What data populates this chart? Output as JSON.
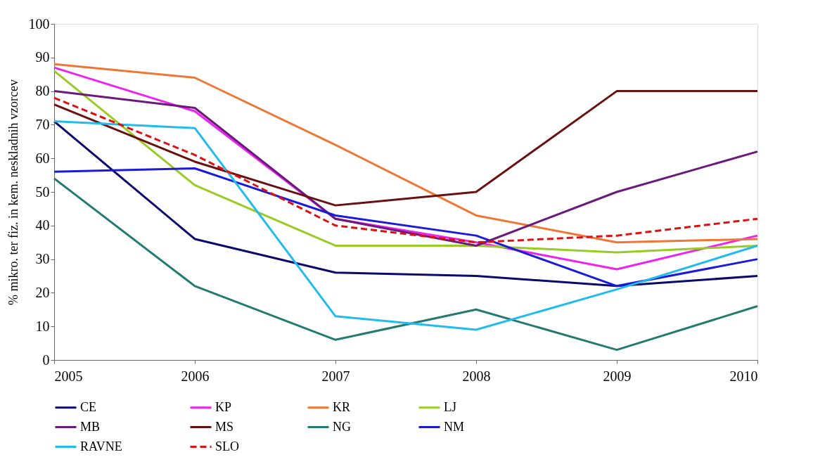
{
  "chart_data": {
    "type": "line",
    "ylabel": "% mikro. ter fiz. in kem. neskladnih vzorcev",
    "x": [
      2005,
      2006,
      2007,
      2008,
      2009,
      2010
    ],
    "xlim": [
      2005,
      2010
    ],
    "xticks": [
      2005,
      2006,
      2007,
      2008,
      2009,
      2010
    ],
    "ylim": [
      0,
      100
    ],
    "yticks": [
      0,
      10,
      20,
      30,
      40,
      50,
      60,
      70,
      80,
      90,
      100
    ],
    "grid": false,
    "legend": "bottom",
    "marker": "none",
    "series": [
      {
        "name": "CE",
        "color": "#0a0a6e",
        "values": [
          71,
          36,
          26,
          25,
          22,
          25
        ],
        "line_style": "solid"
      },
      {
        "name": "KP",
        "color": "#ee22ee",
        "values": [
          87,
          74,
          42,
          35,
          27,
          37
        ],
        "line_style": "solid"
      },
      {
        "name": "KR",
        "color": "#ee7733",
        "values": [
          88,
          84,
          64,
          43,
          35,
          36
        ],
        "line_style": "solid"
      },
      {
        "name": "LJ",
        "color": "#99cc22",
        "values": [
          86,
          52,
          34,
          34,
          32,
          34
        ],
        "line_style": "solid"
      },
      {
        "name": "MB",
        "color": "#6a1a7a",
        "values": [
          80,
          75,
          42,
          34,
          50,
          62
        ],
        "line_style": "solid"
      },
      {
        "name": "MS",
        "color": "#6a1010",
        "values": [
          76,
          59,
          46,
          50,
          80,
          80
        ],
        "line_style": "solid"
      },
      {
        "name": "NG",
        "color": "#227a70",
        "values": [
          54,
          22,
          6,
          15,
          3,
          16
        ],
        "line_style": "solid"
      },
      {
        "name": "NM",
        "color": "#1a1add",
        "values": [
          56,
          57,
          43,
          37,
          22,
          30
        ],
        "line_style": "solid"
      },
      {
        "name": "RAVNE",
        "color": "#22bbee",
        "values": [
          71,
          69,
          13,
          9,
          21,
          34
        ],
        "line_style": "solid"
      },
      {
        "name": "SLO",
        "color": "#dd1111",
        "values": [
          78,
          61,
          40,
          35,
          37,
          42
        ],
        "line_style": "dashed"
      }
    ]
  }
}
